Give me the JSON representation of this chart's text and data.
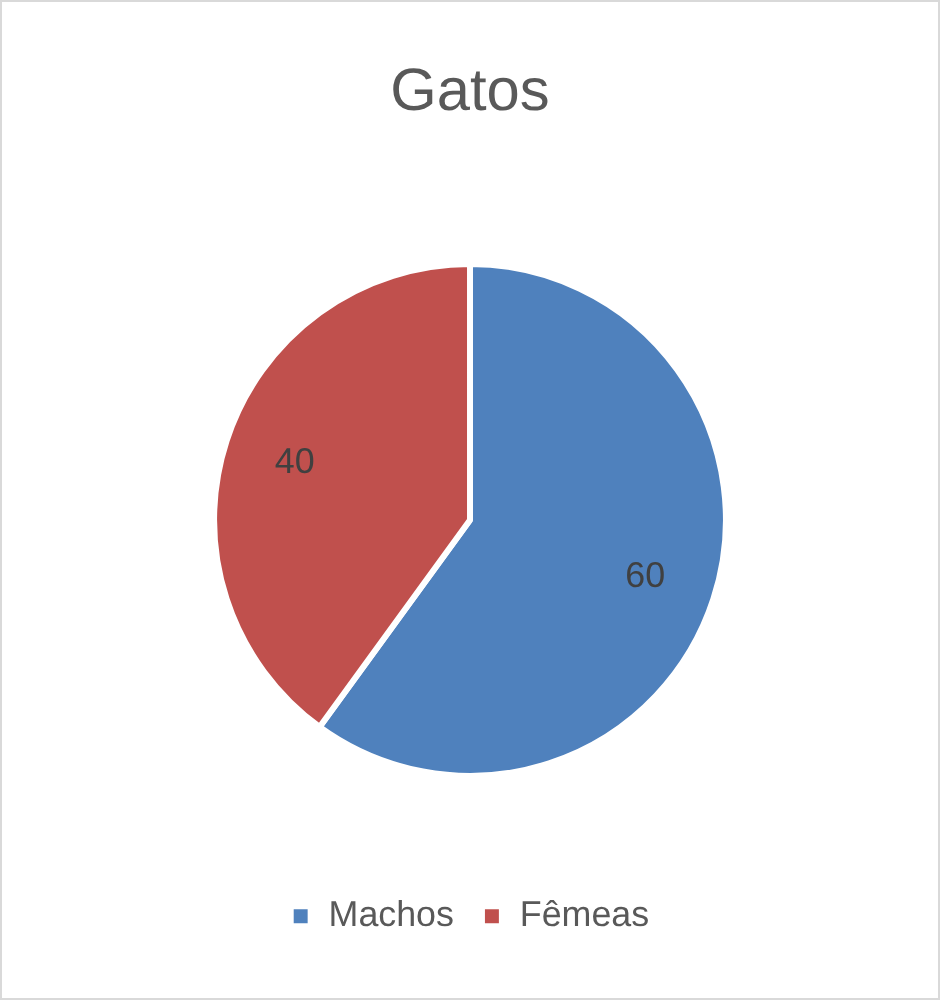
{
  "chart_data": {
    "type": "pie",
    "title": "Gatos",
    "categories": [
      "Machos",
      "Fêmeas"
    ],
    "values": [
      60,
      40
    ],
    "colors": [
      "#4f81bd",
      "#c0504d"
    ],
    "data_labels": true,
    "legend": "bottom"
  }
}
